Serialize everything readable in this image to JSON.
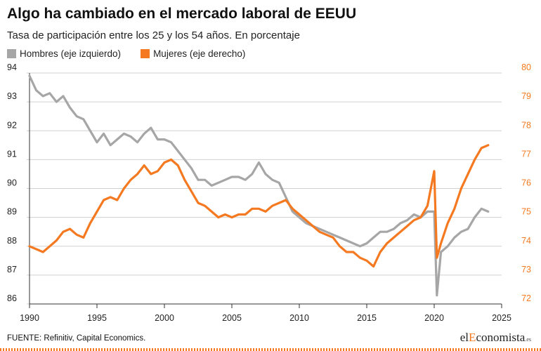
{
  "header": {
    "title": "Algo ha cambiado en el mercado laboral de EEUU",
    "subtitle": "Tasa de participación entre los 25 y los 54 años. En porcentaje"
  },
  "legend": {
    "items": [
      {
        "label": "Hombres (eje izquierdo)",
        "color": "#a6a6a6"
      },
      {
        "label": "Mujeres (eje derecho)",
        "color": "#f47920"
      }
    ]
  },
  "footer": {
    "source": "FUENTE: Refinitiv, Capital Economics.",
    "logo_el": "el",
    "logo_accent": "E",
    "logo_rest": "conomista",
    "logo_tld": ".es"
  },
  "chart_data": {
    "type": "line",
    "title": "Algo ha cambiado en el mercado laboral de EEUU",
    "subtitle": "Tasa de participación entre los 25 y los 54 años. En porcentaje",
    "x_ticks": [
      1990,
      1995,
      2000,
      2005,
      2010,
      2015,
      2020,
      2025
    ],
    "xlim": [
      1990,
      2025
    ],
    "y_left": {
      "ylim": [
        86,
        94
      ],
      "ticks": [
        86,
        87,
        88,
        89,
        90,
        91,
        92,
        93,
        94
      ]
    },
    "y_right": {
      "ylim": [
        72,
        80
      ],
      "ticks": [
        72,
        73,
        74,
        75,
        76,
        77,
        78,
        79,
        80
      ]
    },
    "grid": true,
    "legend_position": "top-left",
    "series": [
      {
        "name": "Hombres (eje izquierdo)",
        "axis": "left",
        "color": "#a6a6a6",
        "x": [
          1990.0,
          1990.5,
          1991.0,
          1991.5,
          1992.0,
          1992.5,
          1993.0,
          1993.5,
          1994.0,
          1994.5,
          1995.0,
          1995.5,
          1996.0,
          1996.5,
          1997.0,
          1997.5,
          1998.0,
          1998.5,
          1999.0,
          1999.5,
          2000.0,
          2000.5,
          2001.0,
          2001.5,
          2002.0,
          2002.5,
          2003.0,
          2003.5,
          2004.0,
          2004.5,
          2005.0,
          2005.5,
          2006.0,
          2006.5,
          2007.0,
          2007.5,
          2008.0,
          2008.5,
          2009.0,
          2009.5,
          2010.0,
          2010.5,
          2011.0,
          2011.5,
          2012.0,
          2012.5,
          2013.0,
          2013.5,
          2014.0,
          2014.5,
          2015.0,
          2015.5,
          2016.0,
          2016.5,
          2017.0,
          2017.5,
          2018.0,
          2018.5,
          2019.0,
          2019.5,
          2020.0,
          2020.2,
          2020.5,
          2021.0,
          2021.5,
          2022.0,
          2022.5,
          2023.0,
          2023.5,
          2024.0
        ],
        "values": [
          93.9,
          93.4,
          93.2,
          93.3,
          93.0,
          93.2,
          92.8,
          92.5,
          92.4,
          92.0,
          91.6,
          91.9,
          91.5,
          91.7,
          91.9,
          91.8,
          91.6,
          91.9,
          92.1,
          91.7,
          91.7,
          91.6,
          91.3,
          91.0,
          90.7,
          90.3,
          90.3,
          90.1,
          90.2,
          90.3,
          90.4,
          90.4,
          90.3,
          90.5,
          90.9,
          90.5,
          90.3,
          90.2,
          89.7,
          89.2,
          89.0,
          88.8,
          88.7,
          88.6,
          88.5,
          88.4,
          88.3,
          88.2,
          88.1,
          88.0,
          88.1,
          88.3,
          88.5,
          88.5,
          88.6,
          88.8,
          88.9,
          89.1,
          89.0,
          89.2,
          89.2,
          86.3,
          87.8,
          88.0,
          88.3,
          88.5,
          88.6,
          89.0,
          89.3,
          89.2
        ]
      },
      {
        "name": "Mujeres (eje derecho)",
        "axis": "right",
        "color": "#f47920",
        "x": [
          1990.0,
          1990.5,
          1991.0,
          1991.5,
          1992.0,
          1992.5,
          1993.0,
          1993.5,
          1994.0,
          1994.5,
          1995.0,
          1995.5,
          1996.0,
          1996.5,
          1997.0,
          1997.5,
          1998.0,
          1998.5,
          1999.0,
          1999.5,
          2000.0,
          2000.5,
          2001.0,
          2001.5,
          2002.0,
          2002.5,
          2003.0,
          2003.5,
          2004.0,
          2004.5,
          2005.0,
          2005.5,
          2006.0,
          2006.5,
          2007.0,
          2007.5,
          2008.0,
          2008.5,
          2009.0,
          2009.5,
          2010.0,
          2010.5,
          2011.0,
          2011.5,
          2012.0,
          2012.5,
          2013.0,
          2013.5,
          2014.0,
          2014.5,
          2015.0,
          2015.5,
          2016.0,
          2016.5,
          2017.0,
          2017.5,
          2018.0,
          2018.5,
          2019.0,
          2019.5,
          2020.0,
          2020.2,
          2020.5,
          2021.0,
          2021.5,
          2022.0,
          2022.5,
          2023.0,
          2023.5,
          2024.0
        ],
        "values": [
          74.0,
          73.9,
          73.8,
          74.0,
          74.2,
          74.5,
          74.6,
          74.4,
          74.3,
          74.8,
          75.2,
          75.6,
          75.7,
          75.6,
          76.0,
          76.3,
          76.5,
          76.8,
          76.5,
          76.6,
          76.9,
          77.0,
          76.8,
          76.3,
          75.9,
          75.5,
          75.4,
          75.2,
          75.0,
          75.1,
          75.0,
          75.1,
          75.1,
          75.3,
          75.3,
          75.2,
          75.4,
          75.5,
          75.6,
          75.3,
          75.1,
          74.9,
          74.7,
          74.5,
          74.4,
          74.3,
          74.0,
          73.8,
          73.8,
          73.6,
          73.5,
          73.3,
          73.8,
          74.1,
          74.3,
          74.5,
          74.7,
          74.9,
          75.0,
          75.4,
          76.6,
          73.6,
          74.1,
          74.8,
          75.3,
          76.0,
          76.5,
          77.0,
          77.4,
          77.5
        ]
      }
    ]
  }
}
